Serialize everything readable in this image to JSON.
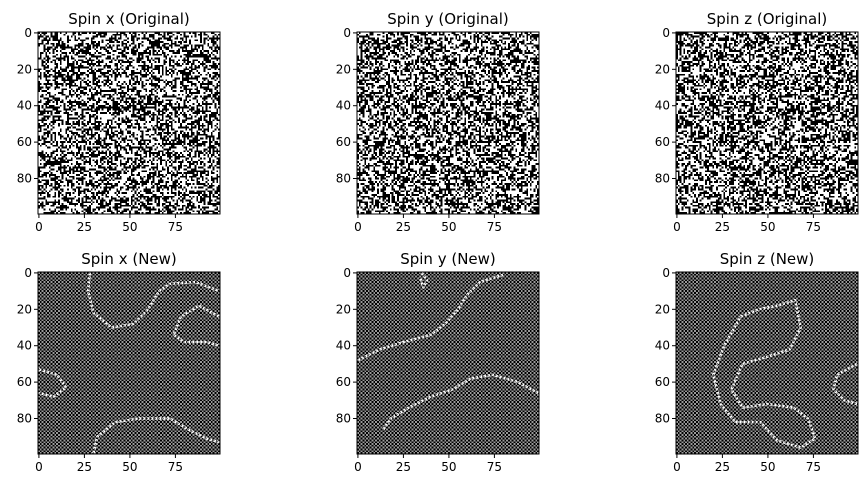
{
  "chart_data": [
    {
      "type": "heatmap",
      "title": "Spin x (Original)",
      "pattern": "random",
      "seed": 11,
      "grid_size": [
        100,
        100
      ],
      "colormap": [
        "#000000",
        "#ffffff"
      ],
      "xlim": [
        0,
        99
      ],
      "ylim": [
        99,
        0
      ],
      "xticks": [
        0,
        25,
        50,
        75
      ],
      "yticks": [
        0,
        20,
        40,
        60,
        80
      ],
      "xlabel": "",
      "ylabel": ""
    },
    {
      "type": "heatmap",
      "title": "Spin y (Original)",
      "pattern": "random",
      "seed": 23,
      "grid_size": [
        100,
        100
      ],
      "colormap": [
        "#000000",
        "#ffffff"
      ],
      "xlim": [
        0,
        99
      ],
      "ylim": [
        99,
        0
      ],
      "xticks": [
        0,
        25,
        50,
        75
      ],
      "yticks": [
        0,
        20,
        40,
        60,
        80
      ],
      "xlabel": "",
      "ylabel": ""
    },
    {
      "type": "heatmap",
      "title": "Spin z (Original)",
      "pattern": "random",
      "seed": 37,
      "grid_size": [
        100,
        100
      ],
      "colormap": [
        "#000000",
        "#ffffff"
      ],
      "xlim": [
        0,
        99
      ],
      "ylim": [
        99,
        0
      ],
      "xticks": [
        0,
        25,
        50,
        75
      ],
      "yticks": [
        0,
        20,
        40,
        60,
        80
      ],
      "xlabel": "",
      "ylabel": ""
    },
    {
      "type": "heatmap",
      "title": "Spin x (New)",
      "pattern": "checkerboard",
      "grid_size": [
        100,
        100
      ],
      "colormap": [
        "#000000",
        "#ffffff"
      ],
      "domain_walls": [
        [
          [
            28,
            0
          ],
          [
            27,
            10
          ],
          [
            30,
            22
          ],
          [
            40,
            30
          ],
          [
            52,
            28
          ],
          [
            60,
            20
          ],
          [
            66,
            10
          ],
          [
            72,
            6
          ],
          [
            86,
            5
          ],
          [
            99,
            10
          ]
        ],
        [
          [
            99,
            24
          ],
          [
            88,
            18
          ],
          [
            78,
            24
          ],
          [
            74,
            34
          ],
          [
            80,
            38
          ],
          [
            92,
            38
          ],
          [
            99,
            40
          ]
        ],
        [
          [
            0,
            53
          ],
          [
            10,
            56
          ],
          [
            15,
            63
          ],
          [
            8,
            68
          ],
          [
            0,
            66
          ]
        ],
        [
          [
            30,
            99
          ],
          [
            32,
            90
          ],
          [
            42,
            82
          ],
          [
            55,
            80
          ],
          [
            72,
            80
          ],
          [
            82,
            86
          ],
          [
            92,
            91
          ],
          [
            99,
            93
          ]
        ]
      ],
      "xlim": [
        0,
        99
      ],
      "ylim": [
        99,
        0
      ],
      "xticks": [
        0,
        25,
        50,
        75
      ],
      "yticks": [
        0,
        20,
        40,
        60,
        80
      ],
      "xlabel": "",
      "ylabel": ""
    },
    {
      "type": "heatmap",
      "title": "Spin y (New)",
      "pattern": "checkerboard",
      "grid_size": [
        100,
        100
      ],
      "colormap": [
        "#000000",
        "#ffffff"
      ],
      "domain_walls": [
        [
          [
            35,
            0
          ],
          [
            38,
            4
          ],
          [
            36,
            8
          ],
          [
            34,
            2
          ]
        ],
        [
          [
            0,
            48
          ],
          [
            12,
            42
          ],
          [
            25,
            38
          ],
          [
            40,
            34
          ],
          [
            48,
            28
          ],
          [
            55,
            20
          ],
          [
            60,
            12
          ],
          [
            67,
            5
          ],
          [
            80,
            1
          ]
        ],
        [
          [
            14,
            86
          ],
          [
            18,
            80
          ],
          [
            28,
            74
          ],
          [
            40,
            68
          ],
          [
            52,
            64
          ],
          [
            62,
            58
          ],
          [
            74,
            56
          ],
          [
            88,
            60
          ],
          [
            99,
            66
          ]
        ]
      ],
      "xlim": [
        0,
        99
      ],
      "ylim": [
        99,
        0
      ],
      "xticks": [
        0,
        25,
        50,
        75
      ],
      "yticks": [
        0,
        20,
        40,
        60,
        80
      ],
      "xlabel": "",
      "ylabel": ""
    },
    {
      "type": "heatmap",
      "title": "Spin z (New)",
      "pattern": "checkerboard",
      "grid_size": [
        100,
        100
      ],
      "colormap": [
        "#000000",
        "#ffffff"
      ],
      "domain_walls": [
        [
          [
            35,
            24
          ],
          [
            45,
            20
          ],
          [
            55,
            18
          ],
          [
            65,
            15
          ],
          [
            68,
            30
          ],
          [
            62,
            42
          ],
          [
            50,
            46
          ],
          [
            36,
            50
          ],
          [
            30,
            64
          ],
          [
            36,
            74
          ],
          [
            50,
            72
          ],
          [
            64,
            74
          ],
          [
            72,
            80
          ],
          [
            76,
            91
          ],
          [
            68,
            96
          ],
          [
            55,
            92
          ],
          [
            46,
            82
          ],
          [
            32,
            82
          ],
          [
            24,
            72
          ],
          [
            20,
            56
          ],
          [
            26,
            40
          ],
          [
            35,
            24
          ]
        ],
        [
          [
            99,
            50
          ],
          [
            88,
            56
          ],
          [
            86,
            64
          ],
          [
            92,
            70
          ],
          [
            99,
            72
          ]
        ]
      ],
      "xlim": [
        0,
        99
      ],
      "ylim": [
        99,
        0
      ],
      "xticks": [
        0,
        25,
        50,
        75
      ],
      "yticks": [
        0,
        20,
        40,
        60,
        80
      ],
      "xlabel": "",
      "ylabel": ""
    }
  ]
}
